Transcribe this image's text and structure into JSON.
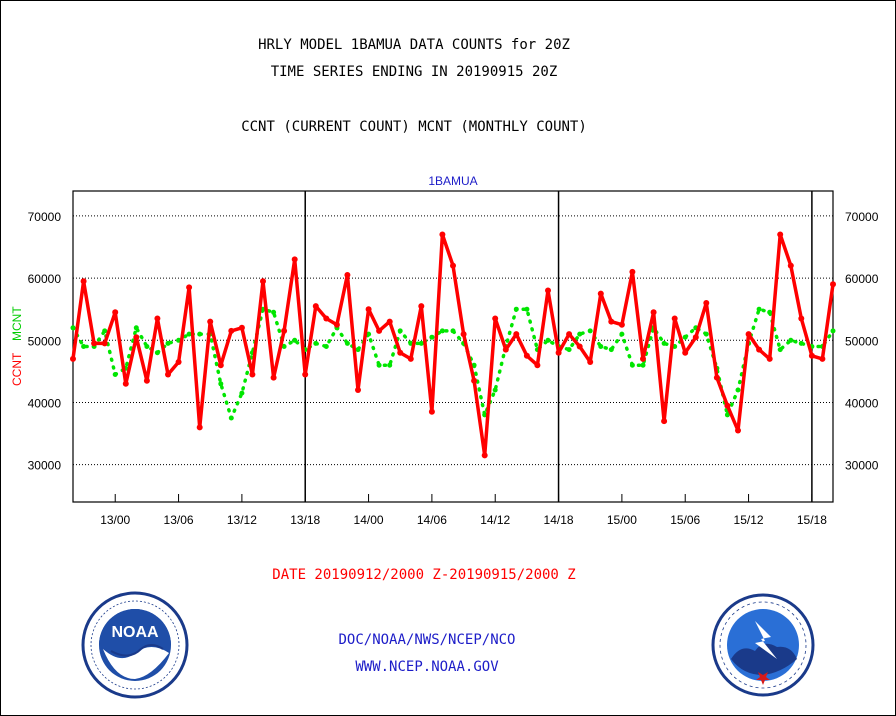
{
  "header": {
    "title_line1": "HRLY MODEL 1BAMUA DATA COUNTS for 20Z",
    "title_line2": "TIME SERIES ENDING IN 20190915 20Z",
    "title_line3": "CCNT (CURRENT COUNT) MCNT (MONTHLY COUNT)"
  },
  "footer": {
    "date_range": "DATE 20190912/2000 Z-20190915/2000 Z",
    "credit_org": "DOC/NOAA/NWS/NCEP/NCO",
    "credit_url": "WWW.NCEP.NOAA.GOV"
  },
  "logos": {
    "left": "noaa-logo",
    "left_text": "NOAA",
    "right": "national-weather-service-logo"
  },
  "colors": {
    "ccnt": "#ff0000",
    "mcnt": "#00e600",
    "axis_text": "#000000",
    "plot_title": "#1c1cc8"
  },
  "chart_data": {
    "type": "line",
    "title": "1BAMUA",
    "ylabel_left": "CCNT",
    "ylabel_right": "MCNT",
    "ylim": [
      24000,
      74000
    ],
    "yticks": [
      30000,
      40000,
      50000,
      60000,
      70000
    ],
    "ytick_labels": [
      "30000",
      "40000",
      "50000",
      "60000",
      "70000"
    ],
    "grid": "horizontal dotted",
    "x_start": "2019-09-12 20Z",
    "x_end": "2019-09-15 20Z",
    "x_step_hours": 1,
    "xtick_labels": [
      "13/00",
      "13/06",
      "13/12",
      "13/18",
      "14/00",
      "14/06",
      "14/12",
      "14/18",
      "15/00",
      "15/06",
      "15/12",
      "15/18"
    ],
    "day_boundaries": [
      "13/18",
      "14/18",
      "15/18"
    ],
    "series": [
      {
        "name": "CCNT",
        "style": "solid",
        "values": [
          47000,
          59500,
          49500,
          49500,
          54500,
          43000,
          50500,
          43500,
          53500,
          44500,
          46500,
          58500,
          36000,
          53000,
          46000,
          51500,
          52000,
          44500,
          59500,
          44000,
          51500,
          63000,
          44500,
          55500,
          53500,
          52500,
          60500,
          42000,
          55000,
          51500,
          53000,
          48000,
          47000,
          55500,
          38500,
          67000,
          62000,
          51000,
          43500,
          31500,
          53500,
          48500,
          51000,
          47500,
          46000,
          58000,
          48000,
          51000,
          49000,
          46500,
          57500,
          53000,
          52500,
          61000,
          47000,
          54500,
          37000,
          53500,
          48000,
          50500,
          56000,
          44000,
          39500,
          35500,
          51000,
          48500,
          47000,
          67000,
          62000,
          53500,
          47500,
          47000,
          59000
        ]
      },
      {
        "name": "MCNT",
        "style": "dotted",
        "values": [
          52000,
          49000,
          49000,
          51500,
          44500,
          45500,
          52000,
          49000,
          48000,
          49500,
          50000,
          51000,
          51000,
          51000,
          43000,
          37500,
          41500,
          48000,
          55000,
          54500,
          49000,
          50000,
          48500,
          49500,
          49000,
          52000,
          49500,
          48500,
          51000,
          46000,
          46000,
          51500,
          49500,
          49500,
          50500,
          51500,
          51500,
          49500,
          46000,
          38000,
          42000,
          49000,
          55000,
          55000,
          48500,
          50000,
          49000,
          48500,
          51000,
          51500,
          49000,
          48500,
          51000,
          46000,
          46000,
          52000,
          49500,
          49000,
          50500,
          52000,
          51000,
          45500,
          38000,
          42000,
          49500,
          55000,
          54500,
          48500,
          50000,
          49500,
          49000,
          49000,
          51500
        ]
      }
    ]
  }
}
